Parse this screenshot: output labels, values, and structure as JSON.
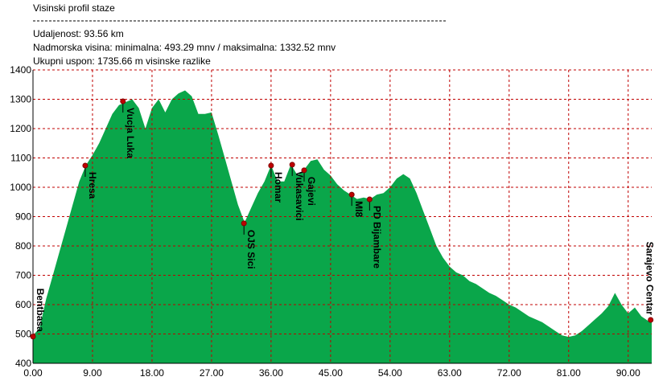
{
  "chart_data": {
    "type": "area",
    "title": "Visinski profil staze",
    "info_lines": [
      "Udaljenost: 93.56 km",
      "Nadmorska visina:  minimalna: 493.29 mnv   /  maksimalna: 1332.52 mnv",
      "Ukupni uspon: 1735.66 m visinske razlike"
    ],
    "color": "#0aa64a",
    "grid": true,
    "xlim": [
      0,
      93.56
    ],
    "ylim": [
      400,
      1400
    ],
    "yticks": [
      400,
      500,
      600,
      700,
      800,
      900,
      1000,
      1100,
      1200,
      1300,
      1400
    ],
    "xticks": [
      {
        "value": 0,
        "label": "0.00"
      },
      {
        "value": 9,
        "label": "9.00"
      },
      {
        "value": 18,
        "label": "18.00"
      },
      {
        "value": 27,
        "label": "27.00"
      },
      {
        "value": 36,
        "label": "36.00"
      },
      {
        "value": 45,
        "label": "45.00"
      },
      {
        "value": 54,
        "label": "54.00"
      },
      {
        "value": 63,
        "label": "63.00"
      },
      {
        "value": 72,
        "label": "72.00"
      },
      {
        "value": 81,
        "label": "81.00"
      },
      {
        "value": 90,
        "label": "90.00"
      }
    ],
    "x": [
      0,
      1,
      2,
      3,
      4,
      5,
      6,
      7,
      8,
      9,
      10,
      11,
      12,
      13,
      14,
      15,
      16,
      17,
      18,
      19,
      20,
      21,
      22,
      23,
      24,
      25,
      26,
      27,
      28,
      29,
      30,
      31,
      32,
      33,
      34,
      35,
      36,
      37,
      38,
      39,
      40,
      41,
      42,
      43,
      44,
      45,
      46,
      47,
      48,
      49,
      50,
      51,
      52,
      53,
      54,
      55,
      56,
      57,
      58,
      59,
      60,
      61,
      62,
      63,
      64,
      65,
      66,
      67,
      68,
      69,
      70,
      71,
      72,
      73,
      74,
      75,
      76,
      77,
      78,
      79,
      80,
      81,
      82,
      83,
      84,
      85,
      86,
      87,
      88,
      89,
      90,
      91,
      92,
      93,
      93.56
    ],
    "values": [
      495,
      520,
      620,
      700,
      780,
      860,
      940,
      1020,
      1075,
      1110,
      1150,
      1200,
      1250,
      1280,
      1290,
      1300,
      1270,
      1200,
      1270,
      1300,
      1255,
      1300,
      1320,
      1330,
      1310,
      1250,
      1250,
      1255,
      1180,
      1100,
      1020,
      940,
      880,
      930,
      980,
      1020,
      1075,
      1020,
      1020,
      1078,
      1040,
      1060,
      1090,
      1095,
      1060,
      1040,
      1010,
      990,
      975,
      960,
      965,
      960,
      975,
      980,
      1000,
      1030,
      1045,
      1030,
      980,
      920,
      860,
      800,
      760,
      730,
      710,
      700,
      680,
      670,
      655,
      640,
      630,
      615,
      600,
      590,
      575,
      560,
      550,
      540,
      525,
      510,
      495,
      490,
      495,
      510,
      530,
      550,
      570,
      595,
      640,
      600,
      570,
      590,
      560,
      545,
      550
    ],
    "waypoints": [
      {
        "name": "Bentbasa",
        "x": 0,
        "y": 491
      },
      {
        "name": "Hresa",
        "x": 7.9,
        "y": 1074
      },
      {
        "name": "Vucja Luka",
        "x": 13.6,
        "y": 1293
      },
      {
        "name": "OJS Sici",
        "x": 31.9,
        "y": 877
      },
      {
        "name": "Homar",
        "x": 36.0,
        "y": 1074
      },
      {
        "name": "Vukasavici",
        "x": 39.2,
        "y": 1077
      },
      {
        "name": "Gajevi",
        "x": 41.0,
        "y": 1058
      },
      {
        "name": "MI8",
        "x": 48.2,
        "y": 975
      },
      {
        "name": "PD Bijambare",
        "x": 50.9,
        "y": 959
      },
      {
        "name": "Sarajevo Centar",
        "x": 93.4,
        "y": 548
      }
    ]
  }
}
